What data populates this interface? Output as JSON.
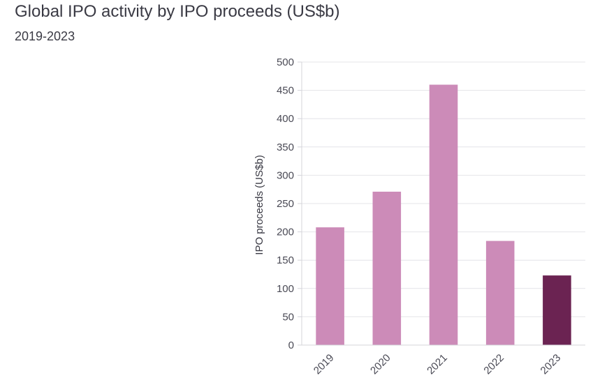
{
  "chart_data": {
    "type": "bar",
    "title": "Global IPO activity by IPO proceeds (US$b)",
    "subtitle": "2019-2023",
    "xlabel": "",
    "ylabel": "IPO proceeds (US$b)",
    "categories": [
      "2019",
      "2020",
      "2021",
      "2022",
      "2023"
    ],
    "values": [
      208,
      271,
      460,
      184,
      123
    ],
    "ylim": [
      0,
      500
    ],
    "yticks": [
      0,
      50,
      100,
      150,
      200,
      250,
      300,
      350,
      400,
      450,
      500
    ],
    "ytick_labels": [
      "0",
      "50",
      "100",
      "150",
      "200",
      "250",
      "300",
      "350",
      "400",
      "450",
      "500"
    ],
    "grid": true,
    "colors": {
      "default_bar": "#cc8bb8",
      "highlight_bar": "#6b2352"
    },
    "highlight_index": 4
  }
}
